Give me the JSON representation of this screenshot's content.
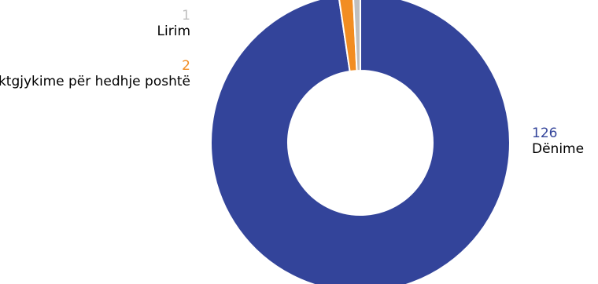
{
  "chart_data": {
    "type": "pie",
    "variant": "doughnut",
    "categories": [
      "Dënime",
      "Aktgjykime për hedhje poshtë",
      "Lirim"
    ],
    "values": [
      126,
      2,
      1
    ],
    "colors": [
      "#33449a",
      "#f28d22",
      "#bfbfbf"
    ],
    "legend": "none",
    "data_labels": [
      {
        "value": "126",
        "label": "Dënime"
      },
      {
        "value": "2",
        "label": "Aktgjykime për hedhje poshtë"
      },
      {
        "value": "1",
        "label": "Lirim"
      }
    ]
  }
}
